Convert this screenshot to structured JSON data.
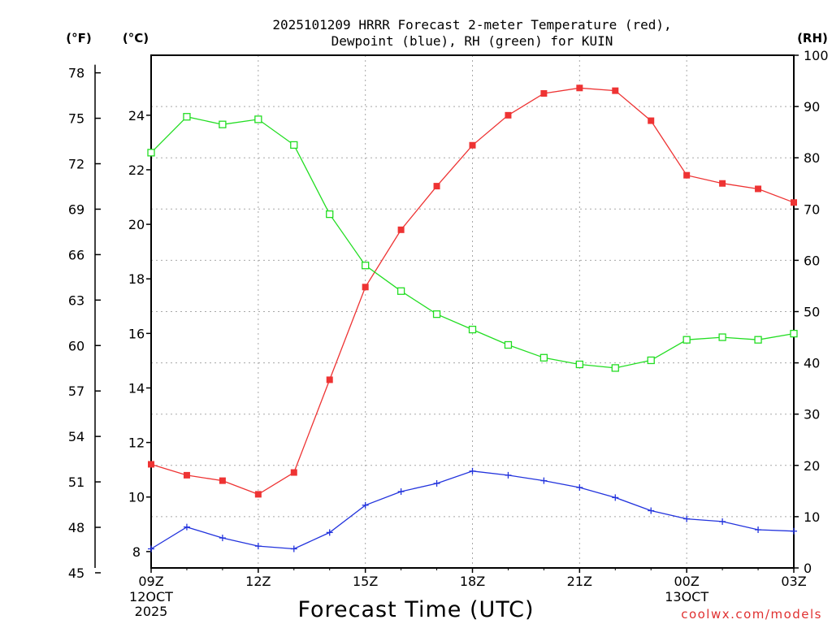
{
  "chart_data": {
    "type": "line",
    "title_line1": "2025101209 HRRR Forecast 2-meter Temperature (red),",
    "title_line2": "Dewpoint (blue), RH (green) for KUIN",
    "xlabel": "Forecast Time (UTC)",
    "watermark": "coolwx.com/models",
    "axis_unit_labels": {
      "fahrenheit": "(°F)",
      "celsius": "(°C)",
      "rh": "(RH)"
    },
    "x_ticks": [
      "09Z",
      "12Z",
      "15Z",
      "18Z",
      "21Z",
      "00Z",
      "03Z"
    ],
    "x_tick_hours": [
      0,
      3,
      6,
      9,
      12,
      15,
      18
    ],
    "x_date_labels": [
      {
        "hour": 0,
        "lines": [
          "12OCT",
          "2025"
        ]
      },
      {
        "hour": 15,
        "lines": [
          "13OCT"
        ]
      }
    ],
    "xlim": [
      0,
      18
    ],
    "celsius_axis": {
      "ylim": [
        7.4,
        26.2
      ],
      "ticks": [
        8,
        10,
        12,
        14,
        16,
        18,
        20,
        22,
        24
      ]
    },
    "fahrenheit_axis": {
      "ticks": [
        45,
        48,
        51,
        54,
        57,
        60,
        63,
        66,
        69,
        72,
        75,
        78
      ]
    },
    "rh_axis": {
      "ylim": [
        0,
        100
      ],
      "ticks": [
        0,
        10,
        20,
        30,
        40,
        50,
        60,
        70,
        80,
        90,
        100
      ]
    },
    "grid": true,
    "x": [
      0,
      1,
      2,
      3,
      4,
      5,
      6,
      7,
      8,
      9,
      10,
      11,
      12,
      13,
      14,
      15,
      16,
      17,
      18
    ],
    "series": [
      {
        "key": "temperature",
        "axis": "celsius",
        "color": "#ee3333",
        "marker": "filled-square",
        "values": [
          11.2,
          10.8,
          10.6,
          10.1,
          10.9,
          14.3,
          17.7,
          19.8,
          21.4,
          22.9,
          24.0,
          24.8,
          25.0,
          24.9,
          23.8,
          21.8,
          21.5,
          21.3,
          20.8
        ]
      },
      {
        "key": "dewpoint",
        "axis": "celsius",
        "color": "#2233dd",
        "marker": "plus",
        "values": [
          8.1,
          8.9,
          8.5,
          8.2,
          8.1,
          8.7,
          9.7,
          10.2,
          10.5,
          10.95,
          10.8,
          10.6,
          10.35,
          9.98,
          9.5,
          9.2,
          9.1,
          8.8,
          8.75
        ]
      },
      {
        "key": "rh",
        "axis": "rh",
        "color": "#22dd22",
        "marker": "open-square",
        "values": [
          81,
          88,
          86.5,
          87.5,
          82.5,
          69,
          59,
          54,
          49.5,
          46.5,
          43.5,
          41,
          39.7,
          39,
          40.5,
          44.5,
          45,
          44.5,
          45.7
        ]
      }
    ]
  }
}
